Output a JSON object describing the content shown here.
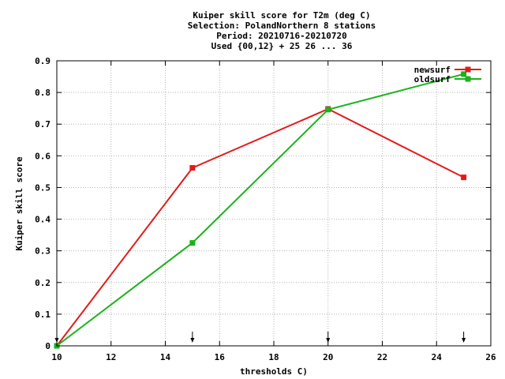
{
  "chart_data": {
    "type": "line",
    "title": "Kuiper skill score  for T2m (deg C)",
    "subtitle_lines": [
      "Selection: PolandNorthern      8 stations",
      "Period: 20210716-20210720",
      "Used {00,12} + 25 26 ... 36"
    ],
    "xlabel": "thresholds C)",
    "ylabel": "Kuiper skill score",
    "xlim": [
      10,
      26
    ],
    "ylim": [
      0,
      0.9
    ],
    "xticks": [
      10,
      12,
      14,
      16,
      18,
      20,
      22,
      24,
      26
    ],
    "xtick_labels": [
      "10",
      "12",
      "14",
      "16",
      "18",
      "20",
      "22",
      "24",
      "26"
    ],
    "yticks": [
      0,
      0.1,
      0.2,
      0.3,
      0.4,
      0.5,
      0.6,
      0.7,
      0.8,
      0.9
    ],
    "ytick_labels": [
      "0",
      "0.1",
      "0.2",
      "0.3",
      "0.4",
      "0.5",
      "0.6",
      "0.7",
      "0.8",
      "0.9"
    ],
    "grid": true,
    "legend_position": "top-right",
    "threshold_markers": [
      10,
      15,
      20,
      25
    ],
    "series": [
      {
        "name": "newsurf",
        "color": "#e41a1a",
        "x": [
          10,
          15,
          20,
          25
        ],
        "y": [
          0.0,
          0.562,
          0.748,
          0.532
        ]
      },
      {
        "name": "oldsurf",
        "color": "#1ab31a",
        "x": [
          10,
          15,
          20,
          25
        ],
        "y": [
          0.0,
          0.325,
          0.746,
          0.858
        ]
      }
    ]
  }
}
